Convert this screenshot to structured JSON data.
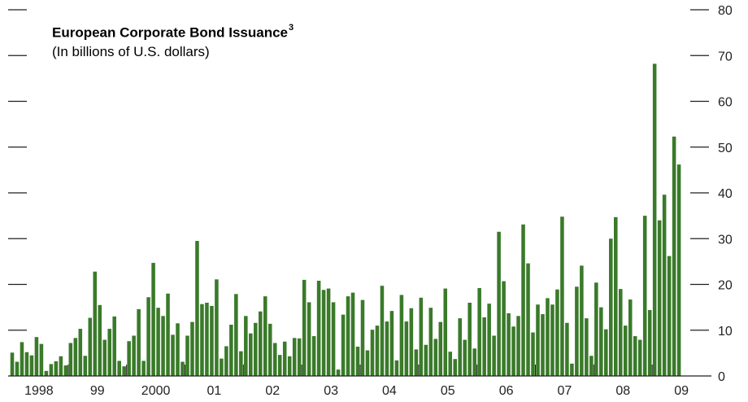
{
  "chart_data": {
    "type": "bar",
    "title": "European Corporate Bond Issuance",
    "title_footnote": "3",
    "subtitle": "(In billions of U.S. dollars)",
    "bar_color": "#3a7a2a",
    "ylim": [
      0,
      80
    ],
    "y_ticks": [
      0,
      10,
      20,
      30,
      40,
      50,
      60,
      70,
      80
    ],
    "x_tick_labels": [
      "1998",
      "99",
      "2000",
      "01",
      "02",
      "03",
      "04",
      "05",
      "06",
      "07",
      "08",
      "09"
    ],
    "grid": false,
    "legend": "none",
    "series": [
      {
        "values": [
          5.1,
          3.1,
          7.4,
          5.2,
          4.5,
          8.5,
          7,
          1.1,
          2.6,
          3.2,
          4.3,
          2.3,
          7.2,
          8.3,
          10.3,
          4.4,
          12.7,
          22.8,
          15.5,
          7.9,
          10.3,
          13,
          3.3,
          2.1,
          7.6,
          8.8,
          14.6,
          3.3,
          17.2,
          24.7,
          14.9,
          13.1,
          18,
          9,
          11.5,
          3.1,
          8.8,
          11.8,
          29.5,
          15.7,
          16,
          15.3,
          21.1,
          3.8,
          6.5,
          11.2,
          17.9,
          5.4,
          13.1,
          9.3,
          11.6,
          14.1,
          17.4,
          11.4,
          7.2,
          4.6,
          7.5,
          4.3,
          8.3,
          8.2,
          21,
          16.1,
          8.7,
          20.8,
          18.8,
          19.1,
          16.1,
          1.4,
          13.4,
          17.4,
          18.2,
          6.4,
          16.6,
          5.6,
          10.1,
          11,
          19.7,
          11.9,
          14.2,
          3.4,
          17.7,
          11.9,
          14.8,
          5.8,
          17.1,
          6.8,
          14.9,
          8.1,
          11.8,
          19.1,
          5.3,
          3.7,
          12.6,
          7.9,
          16,
          6,
          19.2,
          12.8,
          15.8,
          8.8,
          31.5,
          20.7,
          13.7,
          10.8,
          13.1,
          33.1,
          24.6,
          9.5,
          15.6,
          13.5,
          17,
          15.6,
          18.9,
          34.8,
          11.6,
          2.7,
          19.5,
          24.1,
          12.6,
          4.4,
          20.4,
          15,
          10.2,
          30,
          34.7,
          19,
          11,
          16.7,
          8.7,
          7.9,
          35,
          14.4,
          68.2,
          34,
          39.6,
          26.2,
          52.3,
          46.2
        ]
      }
    ]
  }
}
